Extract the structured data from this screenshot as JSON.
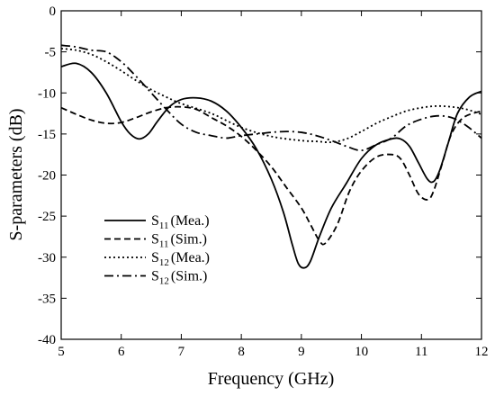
{
  "chart_data": {
    "type": "line",
    "xlabel": "Frequency (GHz)",
    "ylabel": "S-parameters (dB)",
    "xlim": [
      5,
      12
    ],
    "ylim": [
      -40,
      0
    ],
    "xticks": [
      "5",
      "6",
      "7",
      "8",
      "9",
      "10",
      "11",
      "12"
    ],
    "yticks": [
      "0",
      "-5",
      "-10",
      "-15",
      "-20",
      "-25",
      "-30",
      "-35",
      "-40"
    ],
    "grid": false,
    "legend_position": "bottom-left",
    "series": [
      {
        "name_main": "S",
        "name_sub": "11",
        "name_suffix": "(Mea.)",
        "style": "solid",
        "x": [
          5.0,
          5.25,
          5.5,
          5.75,
          6.0,
          6.15,
          6.3,
          6.45,
          6.6,
          6.8,
          7.0,
          7.25,
          7.5,
          7.75,
          8.0,
          8.25,
          8.5,
          8.7,
          8.85,
          8.95,
          9.05,
          9.15,
          9.3,
          9.5,
          9.75,
          10.0,
          10.25,
          10.5,
          10.65,
          10.8,
          10.95,
          11.1,
          11.2,
          11.3,
          11.45,
          11.6,
          11.8,
          12.0
        ],
        "y": [
          -6.8,
          -6.4,
          -7.5,
          -10.0,
          -13.5,
          -15.0,
          -15.6,
          -15.0,
          -13.5,
          -11.7,
          -10.8,
          -10.6,
          -11.0,
          -12.2,
          -14.2,
          -16.8,
          -20.5,
          -24.5,
          -28.5,
          -30.8,
          -31.3,
          -30.5,
          -27.5,
          -24.0,
          -21.0,
          -18.0,
          -16.3,
          -15.6,
          -15.6,
          -16.5,
          -18.5,
          -20.5,
          -20.8,
          -19.5,
          -16.0,
          -12.5,
          -10.5,
          -9.8
        ]
      },
      {
        "name_main": "S",
        "name_sub": "11",
        "name_suffix": "(Sim.)",
        "style": "dashed",
        "x": [
          5.0,
          5.25,
          5.5,
          5.75,
          6.0,
          6.25,
          6.5,
          6.75,
          7.0,
          7.25,
          7.5,
          7.75,
          8.0,
          8.25,
          8.5,
          8.75,
          9.0,
          9.15,
          9.3,
          9.4,
          9.6,
          9.8,
          10.0,
          10.25,
          10.5,
          10.65,
          10.8,
          10.95,
          11.1,
          11.2,
          11.35,
          11.5,
          11.7,
          12.0
        ],
        "y": [
          -11.8,
          -12.6,
          -13.3,
          -13.7,
          -13.6,
          -13.0,
          -12.3,
          -11.8,
          -11.7,
          -12.0,
          -13.0,
          -14.0,
          -15.3,
          -17.0,
          -19.0,
          -21.5,
          -24.0,
          -26.0,
          -28.0,
          -28.3,
          -26.0,
          -22.0,
          -19.5,
          -17.8,
          -17.5,
          -18.0,
          -20.0,
          -22.3,
          -23.0,
          -22.0,
          -18.5,
          -15.0,
          -13.0,
          -12.2
        ]
      },
      {
        "name_main": "S",
        "name_sub": "12",
        "name_suffix": "(Mea.)",
        "style": "dotted",
        "x": [
          5.0,
          5.25,
          5.5,
          5.75,
          6.0,
          6.25,
          6.5,
          6.75,
          7.0,
          7.5,
          8.0,
          8.5,
          9.0,
          9.25,
          9.5,
          9.75,
          10.0,
          10.25,
          10.5,
          10.75,
          11.0,
          11.25,
          11.5,
          11.75,
          12.0
        ],
        "y": [
          -4.6,
          -4.8,
          -5.3,
          -6.2,
          -7.3,
          -8.5,
          -9.6,
          -10.5,
          -11.3,
          -12.5,
          -14.2,
          -15.3,
          -15.8,
          -15.9,
          -16.0,
          -15.6,
          -14.7,
          -13.7,
          -12.9,
          -12.2,
          -11.8,
          -11.6,
          -11.7,
          -12.0,
          -12.6
        ]
      },
      {
        "name_main": "S",
        "name_sub": "12",
        "name_suffix": "(Sim.)",
        "style": "dashdot",
        "x": [
          5.0,
          5.25,
          5.5,
          5.75,
          6.0,
          6.25,
          6.5,
          6.75,
          7.0,
          7.25,
          7.5,
          7.75,
          8.0,
          8.25,
          8.5,
          8.75,
          9.0,
          9.25,
          9.5,
          9.75,
          10.0,
          10.25,
          10.5,
          10.75,
          11.0,
          11.25,
          11.5,
          11.75,
          12.0
        ],
        "y": [
          -4.2,
          -4.4,
          -4.8,
          -5.0,
          -6.2,
          -8.0,
          -10.0,
          -12.0,
          -13.8,
          -14.8,
          -15.2,
          -15.5,
          -15.2,
          -15.0,
          -14.8,
          -14.7,
          -14.8,
          -15.2,
          -15.8,
          -16.5,
          -17.0,
          -16.3,
          -15.5,
          -14.0,
          -13.2,
          -12.8,
          -13.0,
          -14.0,
          -15.5
        ]
      }
    ]
  }
}
